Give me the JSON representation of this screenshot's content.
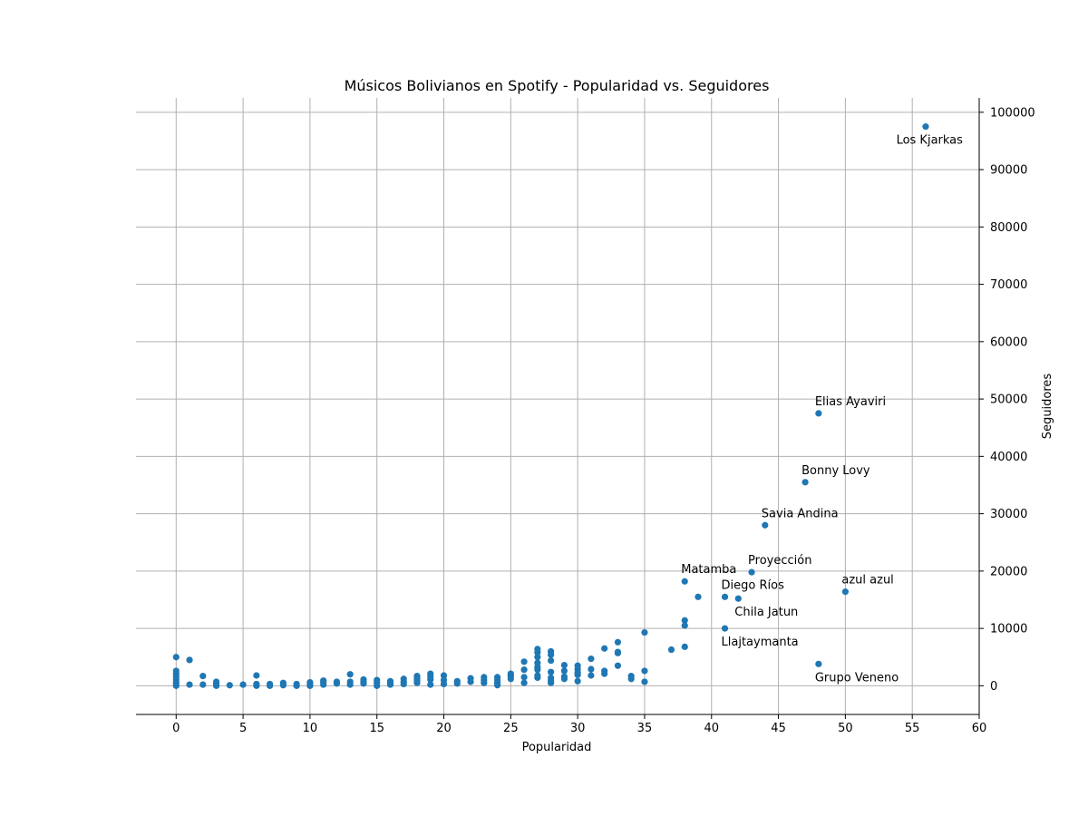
{
  "chart_data": {
    "type": "scatter",
    "title": "Músicos Bolivianos en Spotify - Popularidad vs. Seguidores",
    "xlabel": "Popularidad",
    "ylabel": "Seguidores",
    "xlim": [
      -3,
      60
    ],
    "ylim": [
      -5000,
      102500
    ],
    "x_ticks": [
      0,
      5,
      10,
      15,
      20,
      25,
      30,
      35,
      40,
      45,
      50,
      55,
      60
    ],
    "y_ticks": [
      0,
      10000,
      20000,
      30000,
      40000,
      50000,
      60000,
      70000,
      80000,
      90000,
      100000
    ],
    "y_axis_side": "right",
    "grid": true,
    "marker_color": "#1f77b4",
    "points": [
      [
        0,
        5000
      ],
      [
        0,
        2600
      ],
      [
        0,
        2100
      ],
      [
        0,
        1600
      ],
      [
        0,
        1100
      ],
      [
        0,
        700
      ],
      [
        0,
        300
      ],
      [
        0,
        0
      ],
      [
        1,
        4500
      ],
      [
        1,
        200
      ],
      [
        2,
        1700
      ],
      [
        2,
        200
      ],
      [
        3,
        700
      ],
      [
        3,
        300
      ],
      [
        3,
        0
      ],
      [
        4,
        100
      ],
      [
        5,
        200
      ],
      [
        6,
        1800
      ],
      [
        6,
        300
      ],
      [
        6,
        0
      ],
      [
        7,
        300
      ],
      [
        7,
        0
      ],
      [
        8,
        500
      ],
      [
        8,
        100
      ],
      [
        9,
        300
      ],
      [
        9,
        0
      ],
      [
        10,
        600
      ],
      [
        10,
        300
      ],
      [
        10,
        0
      ],
      [
        11,
        900
      ],
      [
        11,
        600
      ],
      [
        11,
        200
      ],
      [
        12,
        700
      ],
      [
        12,
        400
      ],
      [
        13,
        2000
      ],
      [
        13,
        700
      ],
      [
        13,
        200
      ],
      [
        14,
        1100
      ],
      [
        14,
        700
      ],
      [
        14,
        400
      ],
      [
        15,
        1000
      ],
      [
        15,
        500
      ],
      [
        15,
        0
      ],
      [
        16,
        800
      ],
      [
        16,
        500
      ],
      [
        16,
        200
      ],
      [
        17,
        1200
      ],
      [
        17,
        700
      ],
      [
        17,
        300
      ],
      [
        18,
        1700
      ],
      [
        18,
        1300
      ],
      [
        18,
        900
      ],
      [
        18,
        500
      ],
      [
        19,
        2100
      ],
      [
        19,
        1600
      ],
      [
        19,
        1100
      ],
      [
        19,
        200
      ],
      [
        20,
        1800
      ],
      [
        20,
        1000
      ],
      [
        20,
        300
      ],
      [
        21,
        800
      ],
      [
        21,
        400
      ],
      [
        22,
        1300
      ],
      [
        22,
        700
      ],
      [
        23,
        1500
      ],
      [
        23,
        1000
      ],
      [
        23,
        500
      ],
      [
        24,
        1500
      ],
      [
        24,
        1000
      ],
      [
        24,
        500
      ],
      [
        24,
        100
      ],
      [
        25,
        2100
      ],
      [
        25,
        1700
      ],
      [
        25,
        1200
      ],
      [
        26,
        4200
      ],
      [
        26,
        2800
      ],
      [
        26,
        1500
      ],
      [
        26,
        500
      ],
      [
        27,
        6400
      ],
      [
        27,
        5800
      ],
      [
        27,
        5000
      ],
      [
        27,
        4000
      ],
      [
        27,
        3300
      ],
      [
        27,
        2800
      ],
      [
        27,
        1800
      ],
      [
        27,
        1400
      ],
      [
        28,
        6000
      ],
      [
        28,
        5400
      ],
      [
        28,
        4400
      ],
      [
        28,
        2400
      ],
      [
        28,
        1400
      ],
      [
        28,
        900
      ],
      [
        28,
        500
      ],
      [
        29,
        3600
      ],
      [
        29,
        2600
      ],
      [
        29,
        1600
      ],
      [
        29,
        1200
      ],
      [
        30,
        3500
      ],
      [
        30,
        2900
      ],
      [
        30,
        2300
      ],
      [
        30,
        1900
      ],
      [
        30,
        800
      ],
      [
        31,
        4700
      ],
      [
        31,
        2900
      ],
      [
        31,
        1800
      ],
      [
        32,
        6500
      ],
      [
        32,
        2600
      ],
      [
        32,
        2100
      ],
      [
        33,
        7600
      ],
      [
        33,
        5900
      ],
      [
        33,
        5700
      ],
      [
        33,
        3500
      ],
      [
        34,
        1700
      ],
      [
        34,
        1200
      ],
      [
        35,
        9300
      ],
      [
        35,
        2600
      ],
      [
        35,
        700
      ],
      [
        37,
        6300
      ],
      [
        38,
        18200
      ],
      [
        38,
        11400
      ],
      [
        38,
        10500
      ],
      [
        38,
        6800
      ],
      [
        39,
        15500
      ],
      [
        41,
        15500
      ],
      [
        41,
        10000
      ],
      [
        42,
        15200
      ],
      [
        43,
        19800
      ],
      [
        44,
        28000
      ],
      [
        47,
        35500
      ],
      [
        48,
        47500
      ],
      [
        48,
        3800
      ],
      [
        50,
        16400
      ],
      [
        56,
        97500
      ]
    ],
    "annotations": [
      {
        "label": "Los Kjarkas",
        "x": 56,
        "y": 97500,
        "anchor": "end",
        "place": "below"
      },
      {
        "label": "Elias Ayaviri",
        "x": 48,
        "y": 47500,
        "anchor": "start",
        "place": "above"
      },
      {
        "label": "Bonny Lovy",
        "x": 47,
        "y": 35500,
        "anchor": "start",
        "place": "above"
      },
      {
        "label": "Savia Andina",
        "x": 44,
        "y": 28000,
        "anchor": "start",
        "place": "above"
      },
      {
        "label": "Proyección",
        "x": 43,
        "y": 19800,
        "anchor": "start",
        "place": "above"
      },
      {
        "label": "Matamba",
        "x": 38,
        "y": 18200,
        "anchor": "start",
        "place": "above"
      },
      {
        "label": "Diego Ríos",
        "x": 41,
        "y": 15500,
        "anchor": "start",
        "place": "above"
      },
      {
        "label": "azul azul",
        "x": 50,
        "y": 16400,
        "anchor": "start",
        "place": "above"
      },
      {
        "label": "Chila Jatun",
        "x": 42,
        "y": 15200,
        "anchor": "start",
        "place": "below"
      },
      {
        "label": "Llajtaymanta",
        "x": 41,
        "y": 10000,
        "anchor": "start",
        "place": "below"
      },
      {
        "label": "Grupo Veneno",
        "x": 48,
        "y": 3800,
        "anchor": "start",
        "place": "below"
      }
    ]
  }
}
